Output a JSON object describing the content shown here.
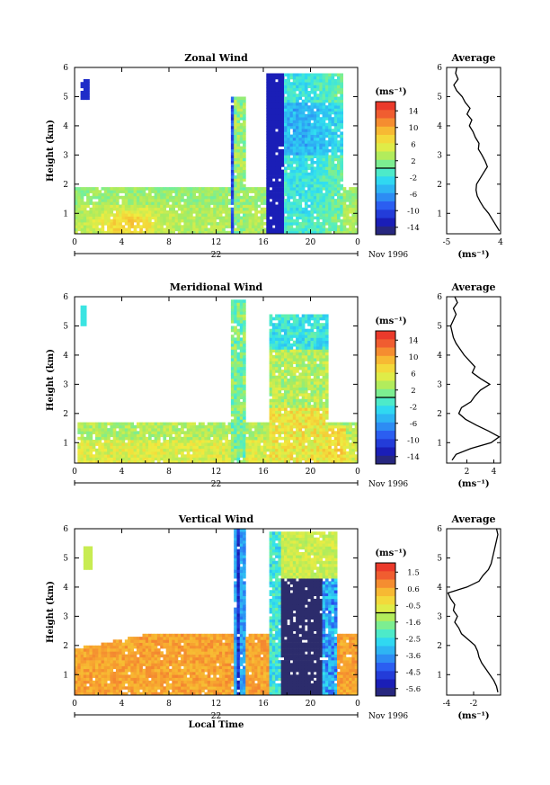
{
  "chart_data": [
    {
      "type": "heatmap",
      "title": "Zonal Wind",
      "ylabel": "Height (km)",
      "xlabel": "",
      "xlim": [
        0,
        24
      ],
      "ylim": [
        0.3,
        6
      ],
      "x_ticks": [
        "0",
        "4",
        "8",
        "12",
        "16",
        "20",
        "0"
      ],
      "y_ticks": [
        "1",
        "2",
        "3",
        "4",
        "5",
        "6"
      ],
      "date_day": "22",
      "date_label": "Nov 1996",
      "colorbar": {
        "unit": "(ms⁻¹)",
        "ticks": [
          "14",
          "10",
          "6",
          "2",
          "-2",
          "-6",
          "-10",
          "-14"
        ],
        "range": [
          -16,
          16
        ],
        "zero_line": 0
      },
      "profile": {
        "title": "Average",
        "xlabel": "(ms⁻¹)",
        "xlim": [
          -5,
          4
        ],
        "x_ticks": [
          "-5",
          "4"
        ],
        "y_ticks": [
          "1",
          "2",
          "3",
          "4",
          "5",
          "6"
        ],
        "height": [
          0.4,
          0.6,
          0.8,
          1.0,
          1.2,
          1.4,
          1.6,
          1.8,
          2.0,
          2.2,
          2.4,
          2.6,
          2.8,
          3.0,
          3.2,
          3.4,
          3.6,
          3.8,
          4.0,
          4.2,
          4.4,
          4.6,
          4.8,
          5.0,
          5.2,
          5.4,
          5.6,
          5.8,
          6.0
        ],
        "value": [
          3.8,
          3.2,
          2.6,
          2.0,
          1.2,
          0.6,
          0.1,
          -0.1,
          0.0,
          0.6,
          1.2,
          1.8,
          1.4,
          0.9,
          0.3,
          0.4,
          -0.2,
          -0.6,
          -1.2,
          -0.8,
          -1.6,
          -1.1,
          -1.9,
          -2.4,
          -3.3,
          -3.8,
          -3.1,
          -3.5,
          -3.3
        ]
      }
    },
    {
      "type": "heatmap",
      "title": "Meridional Wind",
      "ylabel": "Height (km)",
      "xlabel": "",
      "xlim": [
        0,
        24
      ],
      "ylim": [
        0.3,
        6
      ],
      "x_ticks": [
        "0",
        "4",
        "8",
        "12",
        "16",
        "20",
        "0"
      ],
      "y_ticks": [
        "1",
        "2",
        "3",
        "4",
        "5",
        "6"
      ],
      "date_day": "22",
      "date_label": "Nov 1996",
      "colorbar": {
        "unit": "(ms⁻¹)",
        "ticks": [
          "14",
          "10",
          "6",
          "2",
          "-2",
          "-6",
          "-10",
          "-14"
        ],
        "range": [
          -16,
          16
        ],
        "zero_line": 0
      },
      "profile": {
        "title": "Average",
        "xlabel": "(ms⁻¹)",
        "xlim": [
          0.5,
          4.5
        ],
        "x_ticks": [
          "2",
          "4"
        ],
        "y_ticks": [
          "1",
          "2",
          "3",
          "4",
          "5",
          "6"
        ],
        "height": [
          0.4,
          0.6,
          0.8,
          1.0,
          1.2,
          1.4,
          1.6,
          1.8,
          2.0,
          2.2,
          2.4,
          2.6,
          2.8,
          3.0,
          3.2,
          3.4,
          3.6,
          3.8,
          4.0,
          4.2,
          4.4,
          4.6,
          4.8,
          5.0,
          5.2,
          5.4,
          5.6,
          5.8,
          6.0
        ],
        "value": [
          0.9,
          1.2,
          2.3,
          3.8,
          4.4,
          3.6,
          2.7,
          1.9,
          1.4,
          1.6,
          2.3,
          2.6,
          3.0,
          3.7,
          3.0,
          2.4,
          2.6,
          2.2,
          1.8,
          1.5,
          1.2,
          1.0,
          0.9,
          0.8,
          1.0,
          1.2,
          1.0,
          1.3,
          1.1
        ]
      }
    },
    {
      "type": "heatmap",
      "title": "Vertical Wind",
      "ylabel": "Height (km)",
      "xlabel": "Local Time",
      "xlim": [
        0,
        24
      ],
      "ylim": [
        0.3,
        6
      ],
      "x_ticks": [
        "0",
        "4",
        "8",
        "12",
        "16",
        "20",
        "0"
      ],
      "y_ticks": [
        "1",
        "2",
        "3",
        "4",
        "5",
        "6"
      ],
      "date_day": "22",
      "date_label": "Nov 1996",
      "colorbar": {
        "unit": "(ms⁻¹)",
        "ticks": [
          "1.5",
          "0.6",
          "-0.5",
          "-1.6",
          "-2.5",
          "-3.6",
          "-4.5",
          "-5.6"
        ],
        "range": [
          -6,
          2
        ],
        "zero_line": -1
      },
      "profile": {
        "title": "Average",
        "xlabel": "(ms⁻¹)",
        "xlim": [
          -4,
          0
        ],
        "x_ticks": [
          "-4",
          "-2"
        ],
        "y_ticks": [
          "1",
          "2",
          "3",
          "4",
          "5",
          "6"
        ],
        "height": [
          0.4,
          0.6,
          0.8,
          1.0,
          1.2,
          1.4,
          1.6,
          1.8,
          2.0,
          2.2,
          2.4,
          2.6,
          2.8,
          3.0,
          3.2,
          3.4,
          3.6,
          3.8,
          4.0,
          4.2,
          4.4,
          4.6,
          4.8,
          5.0,
          5.2,
          5.4,
          5.6,
          5.8,
          6.0
        ],
        "value": [
          -0.2,
          -0.3,
          -0.5,
          -0.8,
          -1.1,
          -1.4,
          -1.6,
          -1.7,
          -1.9,
          -2.4,
          -2.9,
          -3.1,
          -3.4,
          -3.2,
          -3.5,
          -3.4,
          -3.7,
          -3.9,
          -2.5,
          -1.6,
          -1.3,
          -0.9,
          -0.7,
          -0.6,
          -0.5,
          -0.4,
          -0.3,
          -0.2,
          -0.3
        ]
      }
    }
  ]
}
